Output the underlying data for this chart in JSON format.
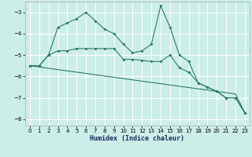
{
  "background_color": "#cceee8",
  "line_color": "#2d7a6b",
  "xlabel": "Humidex (Indice chaleur)",
  "xlim": [
    -0.5,
    23.5
  ],
  "ylim": [
    -8.3,
    -2.5
  ],
  "yticks": [
    -8,
    -7,
    -6,
    -5,
    -4,
    -3
  ],
  "xticks": [
    0,
    1,
    2,
    3,
    4,
    5,
    6,
    7,
    8,
    9,
    10,
    11,
    12,
    13,
    14,
    15,
    16,
    17,
    18,
    19,
    20,
    21,
    22,
    23
  ],
  "line1_y": [
    -5.5,
    -5.5,
    -5.0,
    -3.7,
    -3.5,
    -3.3,
    -3.0,
    -3.4,
    -3.8,
    -4.0,
    -4.5,
    -4.9,
    -4.8,
    -4.5,
    -2.7,
    -3.7,
    -5.0,
    -5.3,
    -6.3,
    -6.5,
    -6.7,
    -7.0,
    -7.0,
    -7.7
  ],
  "line2_y": [
    -5.5,
    -5.56,
    -5.62,
    -5.68,
    -5.74,
    -5.8,
    -5.86,
    -5.92,
    -5.98,
    -6.04,
    -6.1,
    -6.16,
    -6.22,
    -6.28,
    -6.34,
    -6.4,
    -6.46,
    -6.52,
    -6.58,
    -6.64,
    -6.7,
    -6.76,
    -6.82,
    -7.7
  ],
  "line3_y": [
    -5.5,
    -5.5,
    -5.0,
    -4.8,
    -4.8,
    -4.7,
    -4.7,
    -4.7,
    -4.7,
    -4.7,
    -5.2,
    -5.2,
    -5.25,
    -5.3,
    -5.3,
    -5.0,
    -5.6,
    -5.8,
    -6.3,
    -6.5,
    -6.7,
    -7.0,
    -7.0,
    -7.7
  ]
}
